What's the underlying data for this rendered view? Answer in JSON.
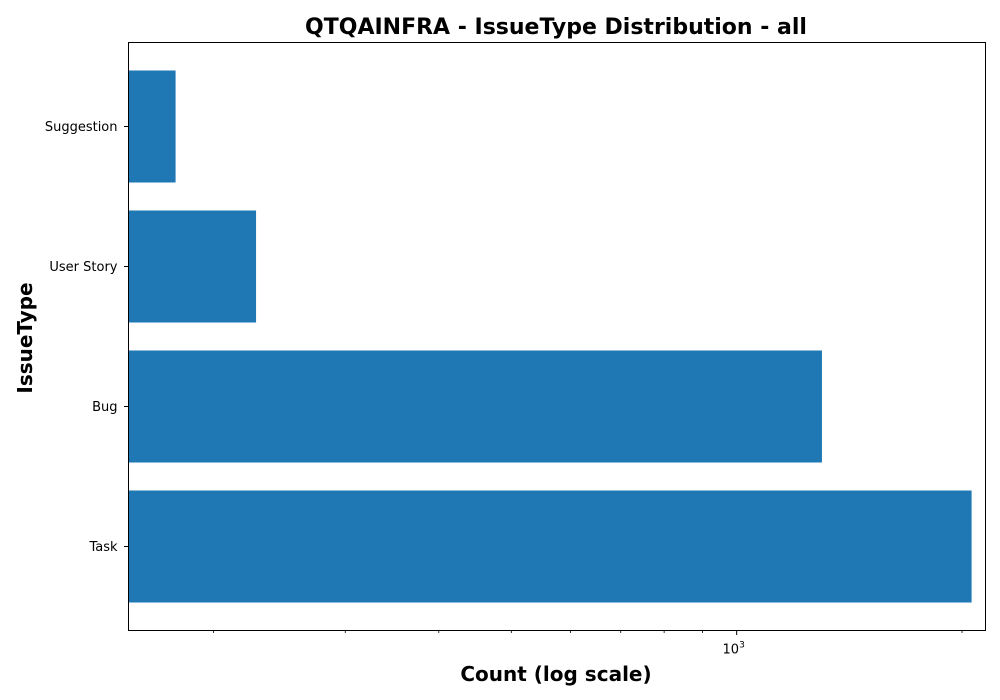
{
  "chart_data": {
    "type": "bar",
    "orientation": "horizontal",
    "title": "QTQAINFRA - IssueType Distribution - all",
    "xlabel": "Count (log scale)",
    "ylabel": "IssueType",
    "x_scale": "log",
    "xlim": [
      154,
      2150
    ],
    "x_tick_labels": [
      {
        "base": "10",
        "exponent": "3",
        "value": 1000
      }
    ],
    "x_minor_ticks": [
      200,
      300,
      400,
      500,
      600,
      700,
      800,
      900,
      2000
    ],
    "categories": [
      "Suggestion",
      "User Story",
      "Bug",
      "Task"
    ],
    "values": [
      178,
      228,
      1300,
      2060
    ],
    "bar_color": "#1f77b4",
    "grid": false
  }
}
